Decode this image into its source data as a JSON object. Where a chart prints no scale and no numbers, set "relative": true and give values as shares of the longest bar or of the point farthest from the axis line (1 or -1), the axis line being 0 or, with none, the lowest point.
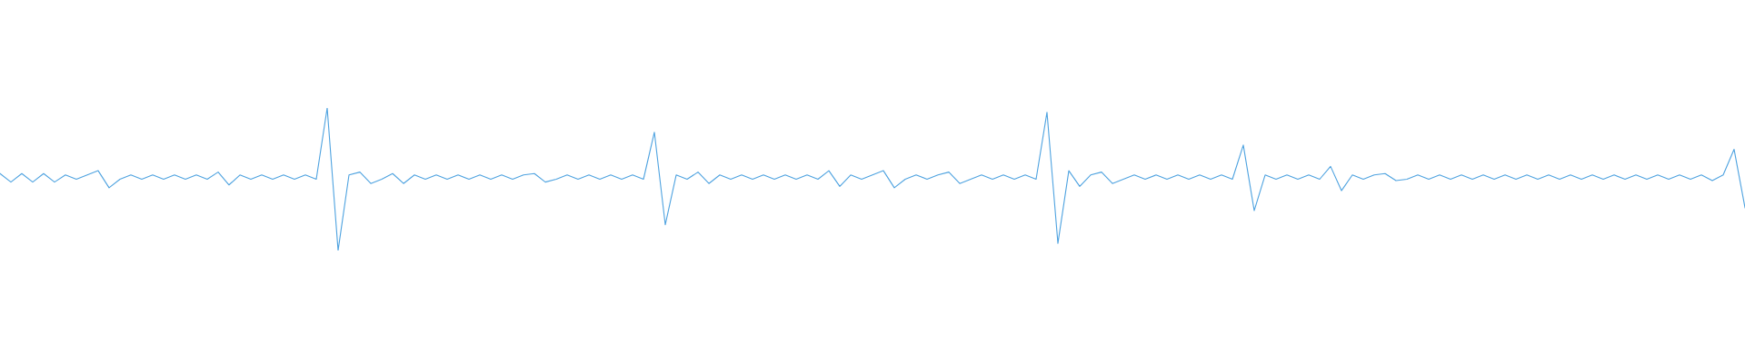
{
  "chart_data": {
    "type": "line",
    "relative": true,
    "tick_labels": false,
    "grid": false,
    "legend": false,
    "marker": "none",
    "line_style": "solid",
    "categories": [
      null,
      null,
      null,
      null,
      null,
      null,
      null,
      null,
      null,
      null,
      null,
      null,
      null,
      null,
      null,
      null,
      null,
      null,
      null,
      null,
      null,
      null,
      null,
      null,
      null,
      null,
      null,
      null,
      null,
      null,
      null,
      null,
      null,
      null,
      null,
      null,
      null,
      null,
      null,
      null,
      null,
      null,
      null,
      null,
      null,
      null,
      null,
      null,
      null,
      null,
      null,
      null,
      null,
      null,
      null,
      null,
      null,
      null,
      null,
      null,
      null,
      null,
      null,
      null,
      null,
      null,
      null,
      null,
      null,
      null,
      null,
      null,
      null,
      null,
      null,
      null,
      null,
      null,
      null,
      null,
      null,
      null,
      null,
      null,
      null,
      null,
      null,
      null,
      null,
      null,
      null,
      null,
      null,
      null,
      null,
      null,
      null,
      null,
      null,
      null,
      null,
      null,
      null,
      null,
      null,
      null,
      null,
      null,
      null,
      null,
      null,
      null,
      null,
      null,
      null,
      null,
      null,
      null,
      null,
      null,
      null,
      null,
      null,
      null,
      null,
      null,
      null,
      null,
      null,
      null,
      null,
      null,
      null,
      null,
      null,
      null,
      null,
      null,
      null,
      null,
      null,
      null,
      null,
      null,
      null,
      null,
      null,
      null,
      null,
      null,
      null,
      null,
      null,
      null,
      null,
      null,
      null,
      null,
      null,
      null,
      null
    ],
    "series": [
      {
        "color": "#4fa3e0",
        "values": [
          0.54,
          0.48,
          0.54,
          0.48,
          0.54,
          0.48,
          0.53,
          0.5,
          0.53,
          0.56,
          0.44,
          0.5,
          0.53,
          0.5,
          0.53,
          0.5,
          0.53,
          0.5,
          0.53,
          0.5,
          0.55,
          0.46,
          0.53,
          0.5,
          0.53,
          0.5,
          0.53,
          0.5,
          0.53,
          0.5,
          1.0,
          0.0,
          0.53,
          0.55,
          0.47,
          0.5,
          0.54,
          0.47,
          0.53,
          0.5,
          0.53,
          0.5,
          0.53,
          0.5,
          0.53,
          0.5,
          0.53,
          0.5,
          0.53,
          0.54,
          0.48,
          0.5,
          0.53,
          0.5,
          0.53,
          0.5,
          0.53,
          0.5,
          0.53,
          0.5,
          0.83,
          0.18,
          0.53,
          0.5,
          0.55,
          0.47,
          0.53,
          0.5,
          0.53,
          0.5,
          0.53,
          0.5,
          0.53,
          0.5,
          0.53,
          0.5,
          0.56,
          0.45,
          0.53,
          0.5,
          0.53,
          0.56,
          0.44,
          0.5,
          0.53,
          0.5,
          0.53,
          0.55,
          0.47,
          0.5,
          0.53,
          0.5,
          0.53,
          0.5,
          0.53,
          0.5,
          0.97,
          0.05,
          0.56,
          0.45,
          0.53,
          0.55,
          0.47,
          0.5,
          0.53,
          0.5,
          0.53,
          0.5,
          0.53,
          0.5,
          0.53,
          0.5,
          0.53,
          0.5,
          0.74,
          0.28,
          0.53,
          0.5,
          0.53,
          0.5,
          0.53,
          0.5,
          0.59,
          0.42,
          0.53,
          0.5,
          0.53,
          0.54,
          0.49,
          0.5,
          0.53,
          0.5,
          0.53,
          0.5,
          0.53,
          0.5,
          0.53,
          0.5,
          0.53,
          0.5,
          0.53,
          0.5,
          0.53,
          0.5,
          0.53,
          0.5,
          0.53,
          0.5,
          0.53,
          0.5,
          0.53,
          0.5,
          0.53,
          0.5,
          0.53,
          0.5,
          0.53,
          0.49,
          0.53,
          0.71,
          0.3
        ]
      }
    ]
  }
}
